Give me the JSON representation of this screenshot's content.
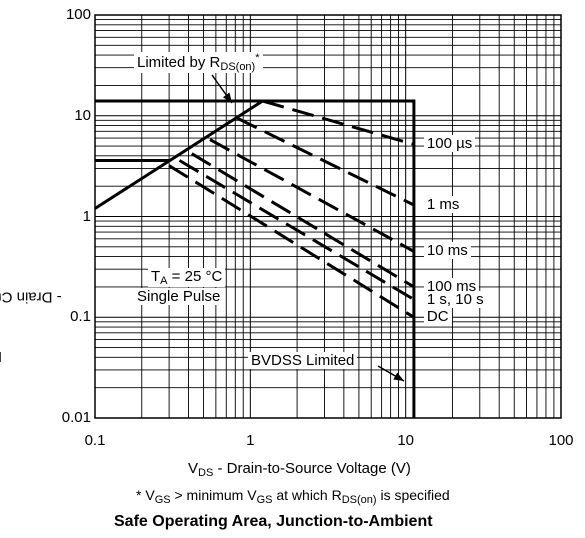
{
  "chart_data": {
    "type": "line",
    "title": "Safe Operating Area, Junction-to-Ambient",
    "xlabel": {
      "pre": "V",
      "sub": "DS",
      "post": " - Drain-to-Source Voltage (V)"
    },
    "ylabel": {
      "pre": "I",
      "sub": "D",
      "post": " - Drain Current (A)"
    },
    "xscale": "log",
    "yscale": "log",
    "xlim": [
      0.1,
      100
    ],
    "ylim": [
      0.01,
      100
    ],
    "x_ticks": [
      "0.1",
      "1",
      "10",
      "100"
    ],
    "y_ticks": [
      "0.01",
      "0.1",
      "1",
      "10",
      "100"
    ],
    "grid": true,
    "footnote": {
      "a": "* V",
      "b": "GS",
      "c": " > minimum V",
      "d": "GS",
      "e": " at which R",
      "f": "DS(on)",
      "g": " is specified"
    },
    "annotations": {
      "rds": {
        "pre": "Limited by R",
        "sub": "DS(on)",
        "post": "*"
      },
      "ta": {
        "pre": "T",
        "sub": "A",
        "post": " = 25 °C"
      },
      "pulse": "Single Pulse",
      "bvdss": "BVDSS Limited"
    },
    "series": [
      {
        "name": "100 µs",
        "style": "dashed",
        "points": [
          [
            1.2,
            14
          ],
          [
            11.3,
            5.2
          ]
        ]
      },
      {
        "name": "1 ms",
        "style": "dashed",
        "points": [
          [
            0.82,
            9.5
          ],
          [
            11.3,
            1.3
          ]
        ]
      },
      {
        "name": "10 ms",
        "style": "dashed",
        "points": [
          [
            0.55,
            5.8
          ],
          [
            11.3,
            0.45
          ]
        ]
      },
      {
        "name": "100 ms",
        "style": "dashed",
        "points": [
          [
            0.42,
            4.2
          ],
          [
            11.3,
            0.2
          ]
        ]
      },
      {
        "name": "1 s, 10 s",
        "style": "dashed",
        "points": [
          [
            0.35,
            3.6
          ],
          [
            11.3,
            0.15
          ]
        ]
      },
      {
        "name": "DC",
        "style": "dashed",
        "points": [
          [
            0.3,
            3.2
          ],
          [
            11.3,
            0.1
          ]
        ]
      },
      {
        "name": "",
        "style": "solid",
        "points": [
          [
            0.1,
            1.2
          ],
          [
            1.2,
            14
          ],
          [
            11.3,
            14
          ],
          [
            11.3,
            0.01
          ]
        ]
      },
      {
        "name": "",
        "style": "solid",
        "points": [
          [
            0.1,
            3.6
          ],
          [
            0.3,
            3.6
          ]
        ]
      },
      {
        "name": "",
        "style": "solid",
        "points": [
          [
            0.1,
            14
          ],
          [
            1.2,
            14
          ]
        ]
      }
    ]
  }
}
